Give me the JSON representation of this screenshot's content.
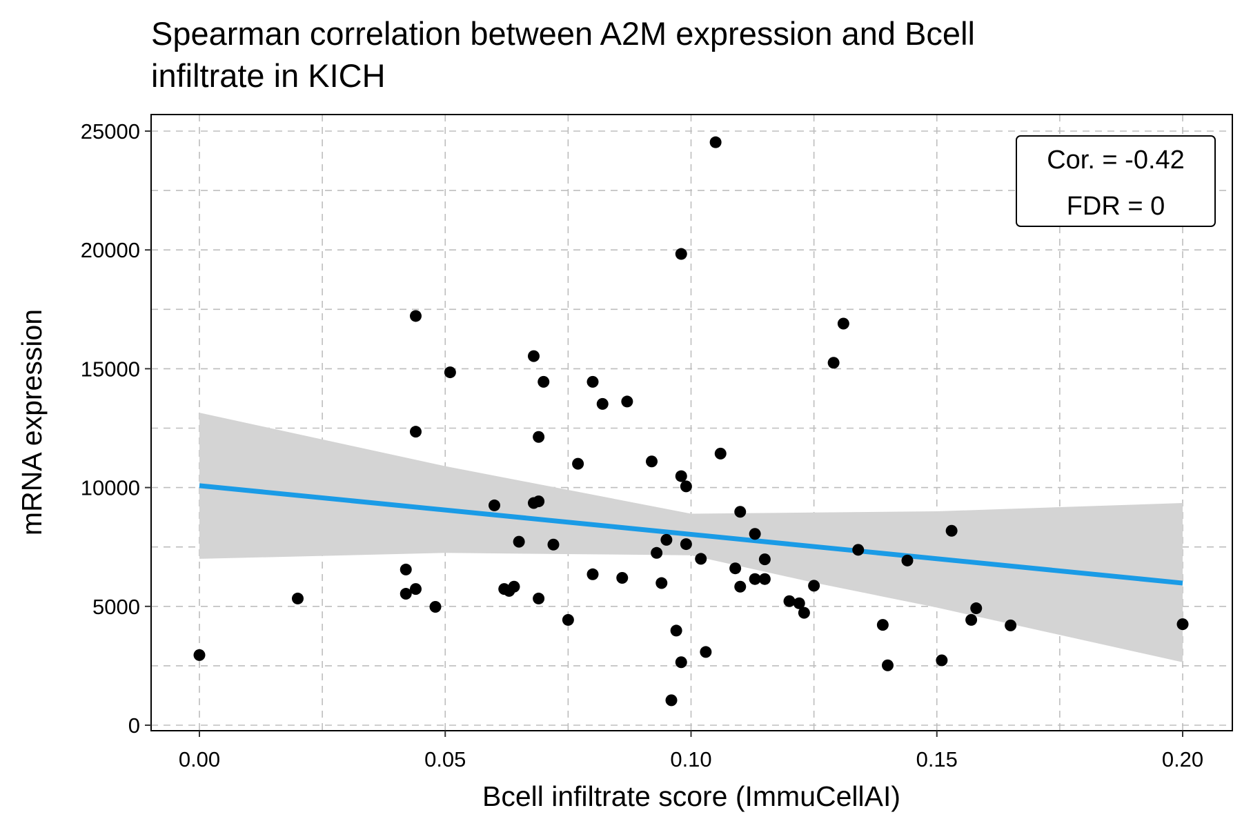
{
  "chart_data": {
    "type": "scatter",
    "title": "Spearman correlation between A2M expression and Bcell infiltrate in KICH",
    "title_lines": [
      "Spearman correlation between A2M expression and Bcell",
      "infiltrate in KICH"
    ],
    "xlabel": "Bcell infiltrate score (ImmuCellAI)",
    "ylabel": "mRNA expression",
    "xlim": [
      -0.01,
      0.21
    ],
    "ylim": [
      0,
      25000
    ],
    "x_ticks": [
      0.0,
      0.05,
      0.1,
      0.15,
      0.2
    ],
    "x_tick_labels": [
      "0.00",
      "0.05",
      "0.10",
      "0.15",
      "0.20"
    ],
    "y_ticks": [
      0,
      5000,
      10000,
      15000,
      20000,
      25000
    ],
    "y_tick_labels": [
      "0",
      "5000",
      "10000",
      "15000",
      "20000",
      "25000"
    ],
    "grid": true,
    "legend": "none",
    "colors": {
      "points": "#000000",
      "fit_line": "#1a9be6",
      "confidence_band": "#d4d4d4",
      "grid": "#bdbdbd"
    },
    "annotation": {
      "position": "top-right",
      "cor_text": "Cor. = -0.42",
      "fdr_text": "FDR = 0"
    },
    "fit_line": {
      "x": [
        0.0,
        0.2
      ],
      "y": [
        10080,
        5980
      ]
    },
    "confidence_band": {
      "x": [
        0.0,
        0.05,
        0.1,
        0.125,
        0.15,
        0.2
      ],
      "upper": [
        13150,
        10900,
        8900,
        8950,
        9000,
        9350
      ],
      "lower": [
        7000,
        7250,
        7150,
        6000,
        4950,
        2650
      ]
    },
    "points": [
      {
        "x": 0.0,
        "y": 2950
      },
      {
        "x": 0.02,
        "y": 5330
      },
      {
        "x": 0.042,
        "y": 6550
      },
      {
        "x": 0.042,
        "y": 5530
      },
      {
        "x": 0.044,
        "y": 5730
      },
      {
        "x": 0.044,
        "y": 17220
      },
      {
        "x": 0.044,
        "y": 12350
      },
      {
        "x": 0.048,
        "y": 4980
      },
      {
        "x": 0.051,
        "y": 14850
      },
      {
        "x": 0.06,
        "y": 9250
      },
      {
        "x": 0.062,
        "y": 5730
      },
      {
        "x": 0.063,
        "y": 5650
      },
      {
        "x": 0.064,
        "y": 5830
      },
      {
        "x": 0.065,
        "y": 7720
      },
      {
        "x": 0.068,
        "y": 15530
      },
      {
        "x": 0.068,
        "y": 9350
      },
      {
        "x": 0.069,
        "y": 9420
      },
      {
        "x": 0.069,
        "y": 12130
      },
      {
        "x": 0.069,
        "y": 5330
      },
      {
        "x": 0.07,
        "y": 14450
      },
      {
        "x": 0.072,
        "y": 7600
      },
      {
        "x": 0.075,
        "y": 4430
      },
      {
        "x": 0.077,
        "y": 11000
      },
      {
        "x": 0.08,
        "y": 14450
      },
      {
        "x": 0.08,
        "y": 6350
      },
      {
        "x": 0.082,
        "y": 13520
      },
      {
        "x": 0.086,
        "y": 6200
      },
      {
        "x": 0.087,
        "y": 13620
      },
      {
        "x": 0.092,
        "y": 11100
      },
      {
        "x": 0.093,
        "y": 7250
      },
      {
        "x": 0.094,
        "y": 5980
      },
      {
        "x": 0.095,
        "y": 7800
      },
      {
        "x": 0.096,
        "y": 1050
      },
      {
        "x": 0.097,
        "y": 3980
      },
      {
        "x": 0.098,
        "y": 19830
      },
      {
        "x": 0.098,
        "y": 10480
      },
      {
        "x": 0.098,
        "y": 2650
      },
      {
        "x": 0.099,
        "y": 10050
      },
      {
        "x": 0.099,
        "y": 7620
      },
      {
        "x": 0.102,
        "y": 7000
      },
      {
        "x": 0.103,
        "y": 3080
      },
      {
        "x": 0.105,
        "y": 24530
      },
      {
        "x": 0.106,
        "y": 11430
      },
      {
        "x": 0.109,
        "y": 6600
      },
      {
        "x": 0.11,
        "y": 8980
      },
      {
        "x": 0.11,
        "y": 5830
      },
      {
        "x": 0.113,
        "y": 8050
      },
      {
        "x": 0.113,
        "y": 6150
      },
      {
        "x": 0.115,
        "y": 6150
      },
      {
        "x": 0.115,
        "y": 6980
      },
      {
        "x": 0.12,
        "y": 5220
      },
      {
        "x": 0.122,
        "y": 5130
      },
      {
        "x": 0.123,
        "y": 4730
      },
      {
        "x": 0.125,
        "y": 5870
      },
      {
        "x": 0.129,
        "y": 15250
      },
      {
        "x": 0.131,
        "y": 16900
      },
      {
        "x": 0.134,
        "y": 7380
      },
      {
        "x": 0.139,
        "y": 4220
      },
      {
        "x": 0.14,
        "y": 2520
      },
      {
        "x": 0.144,
        "y": 6930
      },
      {
        "x": 0.151,
        "y": 2730
      },
      {
        "x": 0.153,
        "y": 8180
      },
      {
        "x": 0.157,
        "y": 4430
      },
      {
        "x": 0.158,
        "y": 4920
      },
      {
        "x": 0.165,
        "y": 4200
      },
      {
        "x": 0.2,
        "y": 4250
      }
    ]
  }
}
